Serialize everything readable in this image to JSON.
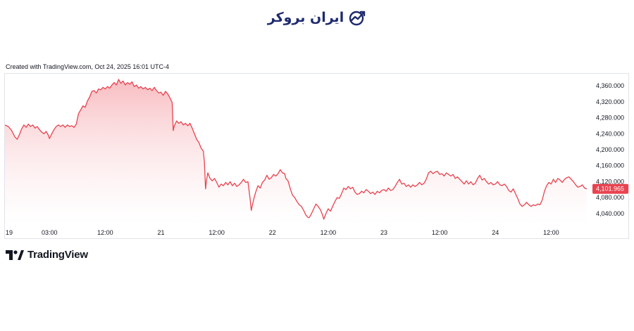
{
  "brand": {
    "name": "ایران بروکر",
    "logo_icon": "trend-chart-logo-icon",
    "color": "#1e2a6e"
  },
  "caption": "Created with TradingView.com, Oct 24, 2025 16:01 UTC-4",
  "footer": {
    "logo_text": "TradingView",
    "logo_icon": "tradingview-logo-icon"
  },
  "chart_data": {
    "type": "area",
    "colors": {
      "line": "#e8434f",
      "fill_top": "#f7b5ba",
      "fill_bottom": "#ffffff",
      "price_tag": "#e8434f"
    },
    "ylim": [
      4010,
      4390
    ],
    "y_ticks": [
      {
        "value": 4360,
        "label": "4,360.000"
      },
      {
        "value": 4320,
        "label": "4,320.000"
      },
      {
        "value": 4280,
        "label": "4,280.000"
      },
      {
        "value": 4240,
        "label": "4,240.000"
      },
      {
        "value": 4200,
        "label": "4,200.000"
      },
      {
        "value": 4160,
        "label": "4,160.000"
      },
      {
        "value": 4120,
        "label": "4,120.000"
      },
      {
        "value": 4080,
        "label": "4,080.000"
      },
      {
        "value": 4040,
        "label": "4,040.000"
      }
    ],
    "x_ticks": [
      {
        "t": 0,
        "label": "19"
      },
      {
        "t": 4,
        "label": "03:00"
      },
      {
        "t": 9,
        "label": "12:00"
      },
      {
        "t": 14,
        "label": "21"
      },
      {
        "t": 19,
        "label": "12:00"
      },
      {
        "t": 24,
        "label": "22"
      },
      {
        "t": 29,
        "label": "12:00"
      },
      {
        "t": 34,
        "label": "23"
      },
      {
        "t": 39,
        "label": "12:00"
      },
      {
        "t": 44,
        "label": "24"
      },
      {
        "t": 49,
        "label": "12:00"
      }
    ],
    "xlim": [
      0,
      52.2
    ],
    "last_price": 4101.965,
    "last_price_label": "4,101.965",
    "points": [
      [
        0.0,
        4262
      ],
      [
        0.3,
        4258
      ],
      [
        0.6,
        4248
      ],
      [
        0.9,
        4232
      ],
      [
        1.1,
        4226
      ],
      [
        1.3,
        4238
      ],
      [
        1.5,
        4252
      ],
      [
        1.7,
        4262
      ],
      [
        1.9,
        4256
      ],
      [
        2.1,
        4264
      ],
      [
        2.3,
        4258
      ],
      [
        2.5,
        4262
      ],
      [
        2.7,
        4254
      ],
      [
        2.9,
        4258
      ],
      [
        3.1,
        4250
      ],
      [
        3.3,
        4244
      ],
      [
        3.5,
        4240
      ],
      [
        3.7,
        4246
      ],
      [
        3.9,
        4236
      ],
      [
        4.0,
        4228
      ],
      [
        4.2,
        4240
      ],
      [
        4.4,
        4250
      ],
      [
        4.6,
        4258
      ],
      [
        4.8,
        4262
      ],
      [
        5.0,
        4258
      ],
      [
        5.2,
        4262
      ],
      [
        5.4,
        4256
      ],
      [
        5.6,
        4262
      ],
      [
        5.8,
        4258
      ],
      [
        6.0,
        4260
      ],
      [
        6.2,
        4256
      ],
      [
        6.4,
        4264
      ],
      [
        6.6,
        4290
      ],
      [
        6.8,
        4300
      ],
      [
        7.0,
        4310
      ],
      [
        7.2,
        4306
      ],
      [
        7.4,
        4322
      ],
      [
        7.6,
        4332
      ],
      [
        7.8,
        4346
      ],
      [
        8.0,
        4348
      ],
      [
        8.2,
        4342
      ],
      [
        8.4,
        4352
      ],
      [
        8.6,
        4350
      ],
      [
        8.8,
        4356
      ],
      [
        9.0,
        4352
      ],
      [
        9.2,
        4358
      ],
      [
        9.4,
        4354
      ],
      [
        9.6,
        4362
      ],
      [
        9.8,
        4368
      ],
      [
        10.0,
        4362
      ],
      [
        10.2,
        4376
      ],
      [
        10.4,
        4366
      ],
      [
        10.6,
        4372
      ],
      [
        10.8,
        4362
      ],
      [
        11.0,
        4368
      ],
      [
        11.2,
        4364
      ],
      [
        11.4,
        4370
      ],
      [
        11.6,
        4358
      ],
      [
        11.8,
        4362
      ],
      [
        12.0,
        4354
      ],
      [
        12.2,
        4358
      ],
      [
        12.4,
        4352
      ],
      [
        12.6,
        4356
      ],
      [
        12.8,
        4350
      ],
      [
        13.0,
        4354
      ],
      [
        13.2,
        4348
      ],
      [
        13.4,
        4356
      ],
      [
        13.6,
        4348
      ],
      [
        13.8,
        4342
      ],
      [
        14.0,
        4344
      ],
      [
        14.2,
        4336
      ],
      [
        14.4,
        4346
      ],
      [
        14.6,
        4340
      ],
      [
        14.8,
        4330
      ],
      [
        15.0,
        4318
      ],
      [
        15.1,
        4248
      ],
      [
        15.2,
        4260
      ],
      [
        15.4,
        4272
      ],
      [
        15.6,
        4266
      ],
      [
        15.8,
        4270
      ],
      [
        16.0,
        4262
      ],
      [
        16.2,
        4266
      ],
      [
        16.4,
        4260
      ],
      [
        16.6,
        4266
      ],
      [
        16.8,
        4254
      ],
      [
        17.0,
        4240
      ],
      [
        17.2,
        4226
      ],
      [
        17.4,
        4218
      ],
      [
        17.6,
        4204
      ],
      [
        17.8,
        4196
      ],
      [
        17.9,
        4168
      ],
      [
        18.0,
        4102
      ],
      [
        18.1,
        4126
      ],
      [
        18.2,
        4142
      ],
      [
        18.4,
        4128
      ],
      [
        18.6,
        4122
      ],
      [
        18.8,
        4128
      ],
      [
        19.0,
        4118
      ],
      [
        19.2,
        4106
      ],
      [
        19.4,
        4114
      ],
      [
        19.6,
        4110
      ],
      [
        19.8,
        4118
      ],
      [
        20.0,
        4112
      ],
      [
        20.2,
        4120
      ],
      [
        20.4,
        4110
      ],
      [
        20.6,
        4116
      ],
      [
        20.8,
        4108
      ],
      [
        21.0,
        4112
      ],
      [
        21.2,
        4118
      ],
      [
        21.4,
        4126
      ],
      [
        21.6,
        4118
      ],
      [
        21.8,
        4120
      ],
      [
        22.0,
        4076
      ],
      [
        22.1,
        4048
      ],
      [
        22.3,
        4074
      ],
      [
        22.5,
        4094
      ],
      [
        22.7,
        4110
      ],
      [
        22.9,
        4104
      ],
      [
        23.1,
        4118
      ],
      [
        23.3,
        4124
      ],
      [
        23.5,
        4136
      ],
      [
        23.7,
        4126
      ],
      [
        23.9,
        4130
      ],
      [
        24.1,
        4138
      ],
      [
        24.3,
        4134
      ],
      [
        24.5,
        4140
      ],
      [
        24.7,
        4150
      ],
      [
        24.9,
        4142
      ],
      [
        25.1,
        4140
      ],
      [
        25.2,
        4128
      ],
      [
        25.4,
        4122
      ],
      [
        25.6,
        4102
      ],
      [
        25.8,
        4086
      ],
      [
        26.0,
        4080
      ],
      [
        26.2,
        4070
      ],
      [
        26.4,
        4062
      ],
      [
        26.6,
        4058
      ],
      [
        26.8,
        4048
      ],
      [
        27.0,
        4036
      ],
      [
        27.2,
        4030
      ],
      [
        27.3,
        4030
      ],
      [
        27.5,
        4040
      ],
      [
        27.7,
        4052
      ],
      [
        27.9,
        4064
      ],
      [
        28.1,
        4058
      ],
      [
        28.3,
        4050
      ],
      [
        28.5,
        4036
      ],
      [
        28.6,
        4026
      ],
      [
        28.8,
        4040
      ],
      [
        29.0,
        4052
      ],
      [
        29.2,
        4046
      ],
      [
        29.4,
        4058
      ],
      [
        29.6,
        4070
      ],
      [
        29.8,
        4080
      ],
      [
        30.0,
        4078
      ],
      [
        30.2,
        4090
      ],
      [
        30.4,
        4104
      ],
      [
        30.6,
        4100
      ],
      [
        30.8,
        4108
      ],
      [
        31.0,
        4102
      ],
      [
        31.2,
        4106
      ],
      [
        31.4,
        4094
      ],
      [
        31.6,
        4088
      ],
      [
        31.8,
        4090
      ],
      [
        32.0,
        4096
      ],
      [
        32.2,
        4092
      ],
      [
        32.4,
        4100
      ],
      [
        32.6,
        4096
      ],
      [
        32.8,
        4090
      ],
      [
        33.0,
        4094
      ],
      [
        33.2,
        4088
      ],
      [
        33.4,
        4096
      ],
      [
        33.6,
        4092
      ],
      [
        33.8,
        4098
      ],
      [
        34.0,
        4100
      ],
      [
        34.2,
        4096
      ],
      [
        34.4,
        4104
      ],
      [
        34.6,
        4098
      ],
      [
        34.8,
        4100
      ],
      [
        35.0,
        4108
      ],
      [
        35.2,
        4118
      ],
      [
        35.4,
        4126
      ],
      [
        35.6,
        4114
      ],
      [
        35.8,
        4116
      ],
      [
        36.0,
        4108
      ],
      [
        36.2,
        4112
      ],
      [
        36.4,
        4106
      ],
      [
        36.6,
        4112
      ],
      [
        36.8,
        4108
      ],
      [
        37.0,
        4112
      ],
      [
        37.2,
        4118
      ],
      [
        37.4,
        4112
      ],
      [
        37.6,
        4116
      ],
      [
        37.8,
        4126
      ],
      [
        38.0,
        4142
      ],
      [
        38.2,
        4146
      ],
      [
        38.4,
        4140
      ],
      [
        38.6,
        4144
      ],
      [
        38.8,
        4146
      ],
      [
        39.0,
        4138
      ],
      [
        39.2,
        4140
      ],
      [
        39.4,
        4134
      ],
      [
        39.6,
        4142
      ],
      [
        39.8,
        4138
      ],
      [
        40.0,
        4134
      ],
      [
        40.2,
        4138
      ],
      [
        40.4,
        4128
      ],
      [
        40.6,
        4132
      ],
      [
        40.8,
        4126
      ],
      [
        41.0,
        4120
      ],
      [
        41.2,
        4114
      ],
      [
        41.4,
        4122
      ],
      [
        41.6,
        4114
      ],
      [
        41.8,
        4120
      ],
      [
        42.0,
        4112
      ],
      [
        42.2,
        4116
      ],
      [
        42.4,
        4128
      ],
      [
        42.6,
        4136
      ],
      [
        42.8,
        4124
      ],
      [
        43.0,
        4128
      ],
      [
        43.2,
        4120
      ],
      [
        43.4,
        4114
      ],
      [
        43.6,
        4118
      ],
      [
        43.8,
        4112
      ],
      [
        44.0,
        4114
      ],
      [
        44.2,
        4120
      ],
      [
        44.4,
        4112
      ],
      [
        44.6,
        4110
      ],
      [
        44.8,
        4114
      ],
      [
        45.0,
        4108
      ],
      [
        45.2,
        4098
      ],
      [
        45.4,
        4094
      ],
      [
        45.6,
        4102
      ],
      [
        45.8,
        4090
      ],
      [
        46.0,
        4078
      ],
      [
        46.2,
        4064
      ],
      [
        46.4,
        4058
      ],
      [
        46.6,
        4062
      ],
      [
        46.8,
        4068
      ],
      [
        47.0,
        4062
      ],
      [
        47.2,
        4058
      ],
      [
        47.4,
        4062
      ],
      [
        47.6,
        4060
      ],
      [
        47.8,
        4064
      ],
      [
        48.0,
        4062
      ],
      [
        48.2,
        4074
      ],
      [
        48.4,
        4096
      ],
      [
        48.6,
        4110
      ],
      [
        48.8,
        4118
      ],
      [
        49.0,
        4114
      ],
      [
        49.2,
        4126
      ],
      [
        49.4,
        4118
      ],
      [
        49.6,
        4128
      ],
      [
        49.8,
        4124
      ],
      [
        50.0,
        4118
      ],
      [
        50.2,
        4126
      ],
      [
        50.4,
        4130
      ],
      [
        50.6,
        4132
      ],
      [
        50.8,
        4126
      ],
      [
        51.0,
        4120
      ],
      [
        51.2,
        4112
      ],
      [
        51.4,
        4106
      ],
      [
        51.6,
        4108
      ],
      [
        51.8,
        4112
      ],
      [
        52.0,
        4104
      ],
      [
        52.2,
        4102
      ]
    ]
  }
}
